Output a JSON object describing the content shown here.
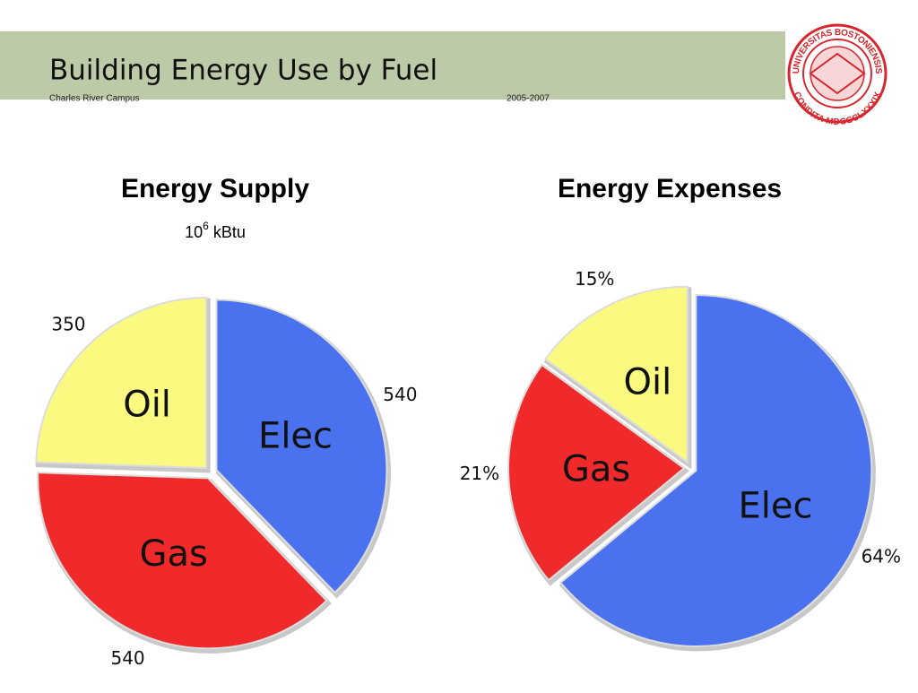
{
  "header": {
    "title": "Building Energy Use by Fuel",
    "subtitle": "Charles River Campus",
    "period": "2005-2007"
  },
  "logo": {
    "top_text": "UNIVERSITAS BOSTONIENSIS",
    "bottom_text": "CONDITA MDCCCLXXXIX"
  },
  "chart_data": [
    {
      "type": "pie",
      "title": "Energy Supply",
      "units": {
        "base": "10",
        "exponent": "6",
        "label": "kBtu"
      },
      "categories": [
        "Elec",
        "Gas",
        "Oil"
      ],
      "values": [
        540,
        540,
        350
      ],
      "colors": [
        "#4a72ee",
        "#f02a2a",
        "#fafa80"
      ]
    },
    {
      "type": "pie",
      "title": "Energy Expenses",
      "categories": [
        "Elec",
        "Gas",
        "Oil"
      ],
      "values": [
        64,
        21,
        15
      ],
      "value_labels": [
        "64%",
        "21%",
        "15%"
      ],
      "colors": [
        "#4a72ee",
        "#f02a2a",
        "#fafa80"
      ]
    }
  ]
}
